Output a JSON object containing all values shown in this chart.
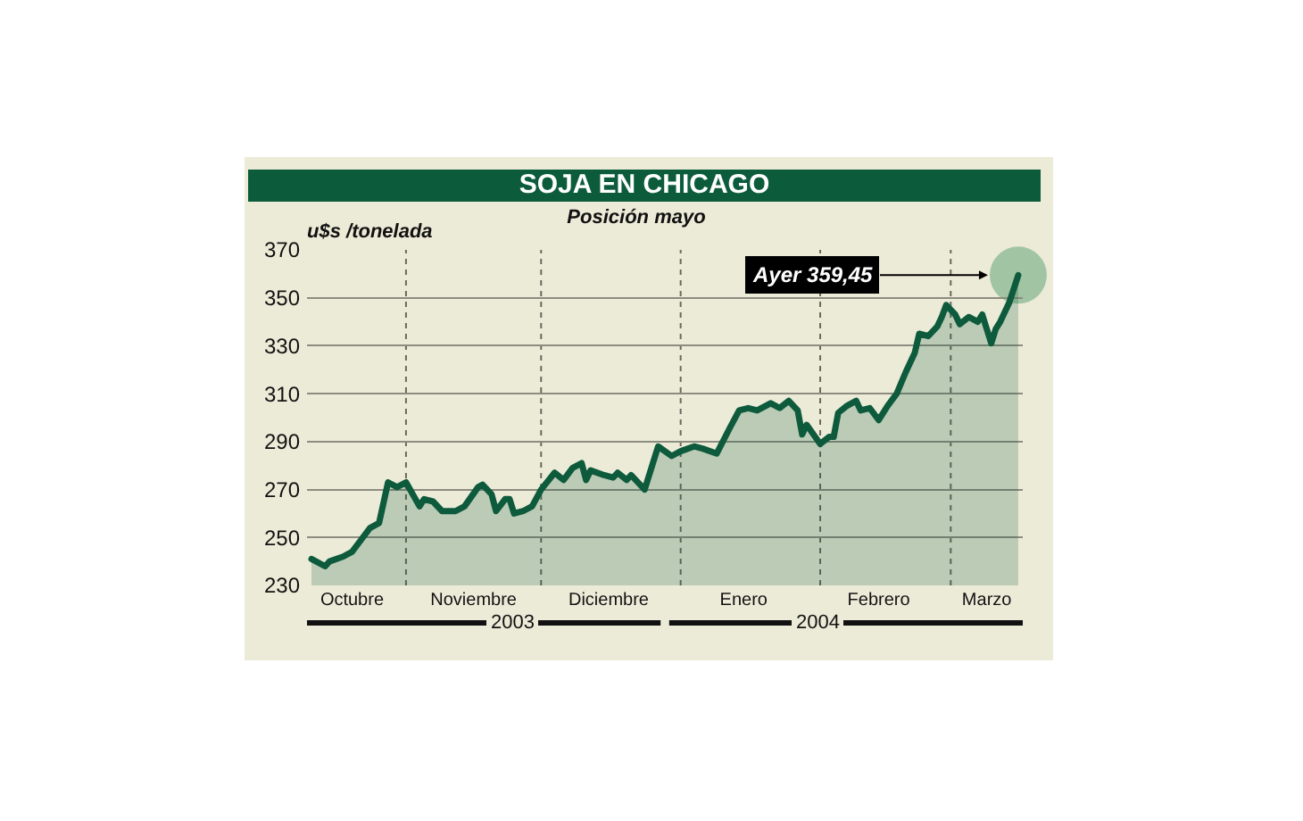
{
  "chart_data": {
    "type": "area",
    "title": "SOJA EN CHICAGO",
    "subtitle": "Posición mayo",
    "ylabel": "u$s /tonelada",
    "x": [
      "2003-10-11",
      "2003-10-14",
      "2003-10-15",
      "2003-10-18",
      "2003-10-20",
      "2003-10-22",
      "2003-10-24",
      "2003-10-26",
      "2003-10-28",
      "2003-10-30",
      "2003-11-01",
      "2003-11-04",
      "2003-11-05",
      "2003-11-07",
      "2003-11-09",
      "2003-11-12",
      "2003-11-14",
      "2003-11-17",
      "2003-11-18",
      "2003-11-20",
      "2003-11-21",
      "2003-11-23",
      "2003-11-24",
      "2003-11-25",
      "2003-11-27",
      "2003-11-29",
      "2003-12-01",
      "2003-12-04",
      "2003-12-06",
      "2003-12-08",
      "2003-12-10",
      "2003-12-11",
      "2003-12-12",
      "2003-12-15",
      "2003-12-17",
      "2003-12-18",
      "2003-12-20",
      "2003-12-21",
      "2003-12-23",
      "2003-12-24",
      "2003-12-27",
      "2003-12-30",
      "2004-01-01",
      "2004-01-04",
      "2004-01-06",
      "2004-01-09",
      "2004-01-12",
      "2004-01-14",
      "2004-01-16",
      "2004-01-18",
      "2004-01-21",
      "2004-01-23",
      "2004-01-25",
      "2004-01-27",
      "2004-01-28",
      "2004-01-29",
      "2004-02-01",
      "2004-02-03",
      "2004-02-04",
      "2004-02-05",
      "2004-02-07",
      "2004-02-09",
      "2004-02-10",
      "2004-02-12",
      "2004-02-14",
      "2004-02-16",
      "2004-02-18",
      "2004-02-20",
      "2004-02-22",
      "2004-02-23",
      "2004-02-25",
      "2004-02-27",
      "2004-02-28",
      "2004-02-29",
      "2004-03-02",
      "2004-03-03",
      "2004-03-05",
      "2004-03-07",
      "2004-03-08",
      "2004-03-10",
      "2004-03-11",
      "2004-03-12",
      "2004-03-14",
      "2004-03-16"
    ],
    "series": [
      {
        "color": "#0d5a3c",
        "values": [
          241,
          238,
          240,
          242,
          244,
          249,
          254,
          256,
          273,
          271,
          273,
          263,
          266,
          265,
          261,
          261,
          263,
          271,
          272,
          268,
          261,
          266,
          266,
          260,
          261,
          263,
          270,
          277,
          274,
          279,
          281,
          274,
          278,
          276,
          275,
          277,
          274,
          276,
          272,
          270,
          288,
          284,
          286,
          288,
          287,
          285,
          296,
          303,
          304,
          303,
          306,
          304,
          307,
          303,
          293,
          297,
          289,
          292,
          292,
          302,
          305,
          307,
          303,
          304,
          299,
          305,
          310,
          319,
          327,
          335,
          334,
          338,
          342,
          347,
          343,
          339,
          342,
          340,
          343,
          331,
          337,
          340,
          348,
          359.45
        ]
      }
    ],
    "xlim": [
      "2003-10-10",
      "2004-03-17"
    ],
    "xticks": [
      {
        "value": "2003-10-20",
        "label": "Octubre"
      },
      {
        "value": "2003-11-01",
        "label": null
      },
      {
        "value": "2003-11-16",
        "label": "Noviembre"
      },
      {
        "value": "2003-12-01",
        "label": null
      },
      {
        "value": "2003-12-16",
        "label": "Diciembre"
      },
      {
        "value": "2004-01-01",
        "label": null
      },
      {
        "value": "2004-01-15",
        "label": "Enero"
      },
      {
        "value": "2004-02-01",
        "label": null
      },
      {
        "value": "2004-02-14",
        "label": "Febrero"
      },
      {
        "value": "2004-03-01",
        "label": null
      },
      {
        "value": "2004-03-09",
        "label": "Marzo"
      }
    ],
    "ylim": [
      230,
      370
    ],
    "yticks": [
      230,
      250,
      270,
      290,
      310,
      330,
      350,
      370
    ],
    "grid": true,
    "annotations": [
      {
        "text": "Ayer 359,45",
        "x": "2004-03-16",
        "y": 359.45
      },
      "2003",
      "2004"
    ]
  }
}
